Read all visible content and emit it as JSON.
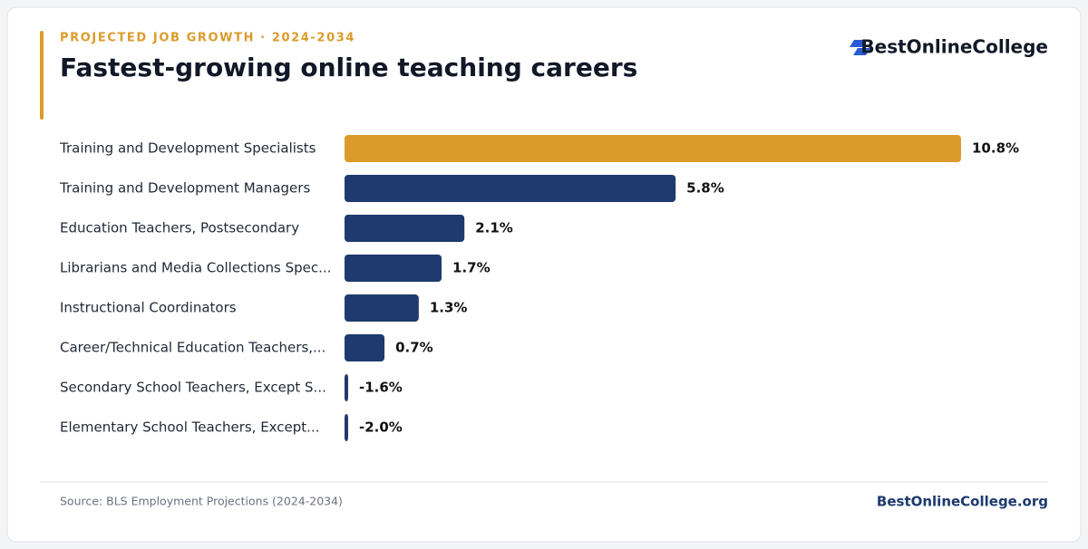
{
  "chart_data": {
    "type": "bar",
    "orientation": "horizontal",
    "kicker": "PROJECTED JOB GROWTH · 2024-2034",
    "title": "Fastest-growing online teaching careers",
    "categories": [
      "Training and Development Specialists",
      "Training and Development Managers",
      "Education Teachers, Postsecondary",
      "Librarians and Media Collections Spec...",
      "Instructional Coordinators",
      "Career/Technical Education Teachers,...",
      "Secondary School Teachers, Except S...",
      "Elementary School Teachers, Except..."
    ],
    "values": [
      10.8,
      5.8,
      2.1,
      1.7,
      1.3,
      0.7,
      -1.6,
      -2.0
    ],
    "value_labels": [
      "10.8%",
      "5.8%",
      "2.1%",
      "1.7%",
      "1.3%",
      "0.7%",
      "-1.6%",
      "-2.0%"
    ],
    "colors": [
      "#db9b2a",
      "#1e3a6e",
      "#1e3a6e",
      "#1e3a6e",
      "#1e3a6e",
      "#1e3a6e",
      "#1e3a6e",
      "#1e3a6e"
    ]
  },
  "brand": "BestOnlineCollege",
  "footer": {
    "source": "Source: BLS Employment Projections (2024-2034)",
    "site": "BestOnlineCollege.org"
  }
}
